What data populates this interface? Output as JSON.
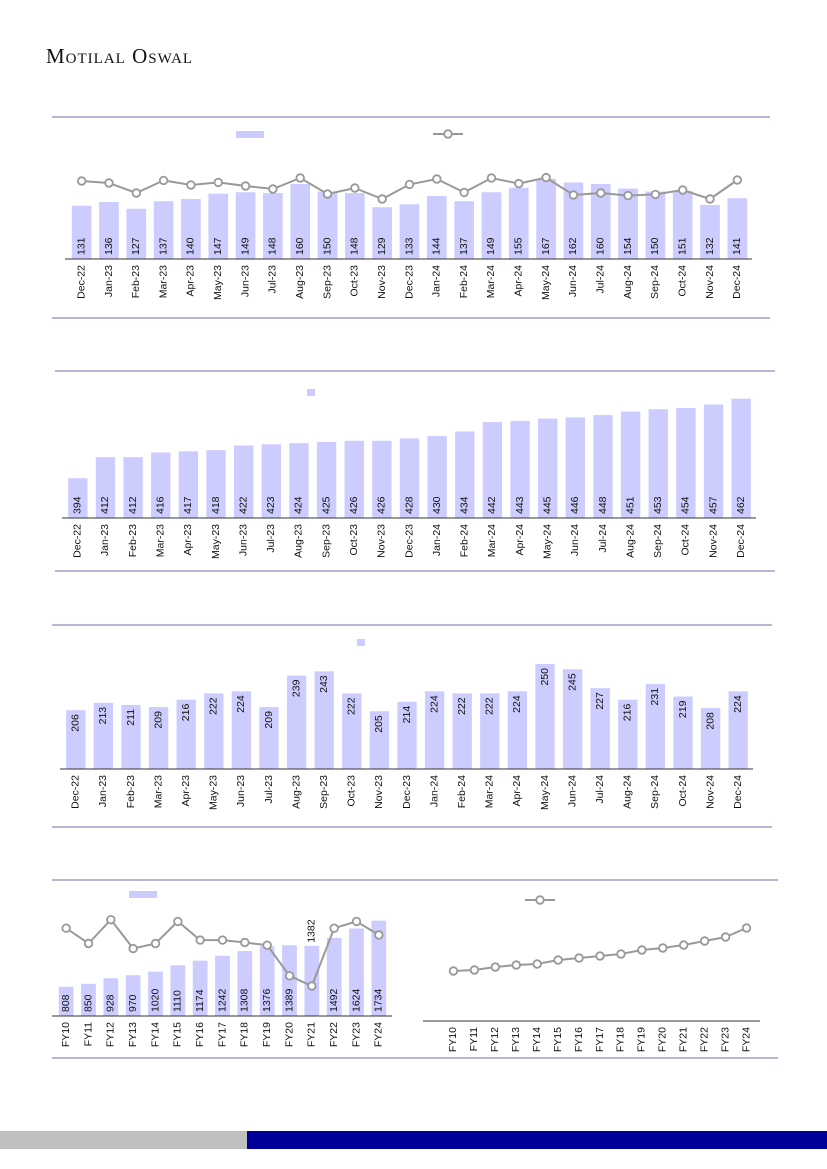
{
  "brand": "Motilal Oswal",
  "colors": {
    "bar": "#ccccff",
    "line": "#999999",
    "marker_fill": "#ffffff",
    "rule": "#6f6fa8",
    "footer_grey": "#bfbfbf",
    "footer_blue": "#000099"
  },
  "chart_data": [
    {
      "type": "bar",
      "categories": [
        "Dec-22",
        "Jan-23",
        "Feb-23",
        "Mar-23",
        "Apr-23",
        "May-23",
        "Jun-23",
        "Jul-23",
        "Aug-23",
        "Sep-23",
        "Oct-23",
        "Nov-23",
        "Dec-23",
        "Jan-24",
        "Feb-24",
        "Mar-24",
        "Apr-24",
        "May-24",
        "Jun-24",
        "Jul-24",
        "Aug-24",
        "Sep-24",
        "Oct-24",
        "Nov-24",
        "Dec-24"
      ],
      "values": [
        131,
        136,
        127,
        137,
        140,
        147,
        149,
        148,
        160,
        150,
        148,
        129,
        133,
        144,
        137,
        149,
        155,
        167,
        162,
        160,
        154,
        150,
        151,
        132,
        141
      ],
      "line_values": [
        14.5,
        13.5,
        8.5,
        14.8,
        12.5,
        13.8,
        12.0,
        10.5,
        16.0,
        8.0,
        11.0,
        5.5,
        12.8,
        15.5,
        8.8,
        16.0,
        13.2,
        16.2,
        7.5,
        8.5,
        7.2,
        7.8,
        10.0,
        5.5,
        15.0
      ]
    },
    {
      "type": "bar",
      "categories": [
        "Dec-22",
        "Jan-23",
        "Feb-23",
        "Mar-23",
        "Apr-23",
        "May-23",
        "Jun-23",
        "Jul-23",
        "Aug-23",
        "Sep-23",
        "Oct-23",
        "Nov-23",
        "Dec-23",
        "Jan-24",
        "Feb-24",
        "Mar-24",
        "Apr-24",
        "May-24",
        "Jun-24",
        "Jul-24",
        "Aug-24",
        "Sep-24",
        "Oct-24",
        "Nov-24",
        "Dec-24"
      ],
      "values": [
        394,
        412,
        412,
        416,
        417,
        418,
        422,
        423,
        424,
        425,
        426,
        426,
        428,
        430,
        434,
        442,
        443,
        445,
        446,
        448,
        451,
        453,
        454,
        457,
        462
      ]
    },
    {
      "type": "bar",
      "categories": [
        "Dec-22",
        "Jan-23",
        "Feb-23",
        "Mar-23",
        "Apr-23",
        "May-23",
        "Jun-23",
        "Jul-23",
        "Aug-23",
        "Sep-23",
        "Oct-23",
        "Nov-23",
        "Dec-23",
        "Jan-24",
        "Feb-24",
        "Mar-24",
        "Apr-24",
        "May-24",
        "Jun-24",
        "Jul-24",
        "Aug-24",
        "Sep-24",
        "Oct-24",
        "Nov-24",
        "Dec-24"
      ],
      "values": [
        206,
        213,
        211,
        209,
        216,
        222,
        224,
        209,
        239,
        243,
        222,
        205,
        214,
        224,
        222,
        222,
        224,
        250,
        245,
        227,
        216,
        231,
        219,
        208,
        224
      ]
    },
    {
      "type": "bar",
      "categories": [
        "FY10",
        "FY11",
        "FY12",
        "FY13",
        "FY14",
        "FY15",
        "FY16",
        "FY17",
        "FY18",
        "FY19",
        "FY20",
        "FY21",
        "FY22",
        "FY23",
        "FY24"
      ],
      "values": [
        808,
        850,
        928,
        970,
        1020,
        1110,
        1174,
        1242,
        1308,
        1376,
        1389,
        1382,
        1492,
        1624,
        1734
      ],
      "line_values": [
        11.0,
        6.5,
        13.5,
        5.0,
        6.5,
        13.0,
        7.5,
        7.5,
        6.8,
        6.0,
        -3.0,
        -6.0,
        11.0,
        13.0,
        9.0
      ]
    },
    {
      "type": "line",
      "categories": [
        "FY10",
        "FY11",
        "FY12",
        "FY13",
        "FY14",
        "FY15",
        "FY16",
        "FY17",
        "FY18",
        "FY19",
        "FY20",
        "FY21",
        "FY22",
        "FY23",
        "FY24"
      ],
      "values": [
        50,
        51,
        54,
        56,
        57,
        61,
        63,
        65,
        67,
        71,
        73,
        76,
        80,
        84,
        93
      ]
    }
  ]
}
